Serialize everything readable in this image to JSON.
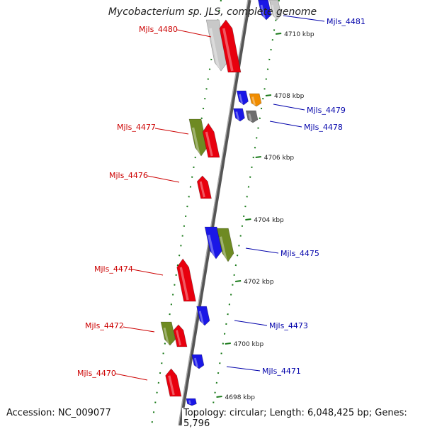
{
  "title": "Mycobacterium sp. JLS, complete genome",
  "accession_text": "Accession: NC_009077",
  "summary_text": "Topology: circular; Length: 6,048,425 bp; Genes: 5,796",
  "colors": {
    "red": "#e8000e",
    "blue": "#1a17e6",
    "olive": "#6e8a22",
    "orange": "#f08c00",
    "gray": "#6e6e6e",
    "light_gray": "#c8c8c8",
    "label_red": "#cc0000",
    "label_blue": "#0000aa",
    "ruler_green": "#1a7a1a"
  },
  "ruler_ticks": [
    {
      "label": "4710 kbp"
    },
    {
      "label": "4708 kbp"
    },
    {
      "label": "4706 kbp"
    },
    {
      "label": "4704 kbp"
    },
    {
      "label": "4702 kbp"
    },
    {
      "label": "4700 kbp"
    },
    {
      "label": "4698 kbp"
    }
  ],
  "gene_labels_left": [
    {
      "text": "Mjls_4480"
    },
    {
      "text": "Mjls_4477"
    },
    {
      "text": "Mjls_4476"
    },
    {
      "text": "Mjls_4474"
    },
    {
      "text": "Mjls_4472"
    },
    {
      "text": "Mjls_4470"
    }
  ],
  "gene_labels_right": [
    {
      "text": "Mjls_4481"
    },
    {
      "text": "Mjls_4479"
    },
    {
      "text": "Mjls_4478"
    },
    {
      "text": "Mjls_4475"
    },
    {
      "text": "Mjls_4473"
    },
    {
      "text": "Mjls_4471"
    }
  ]
}
